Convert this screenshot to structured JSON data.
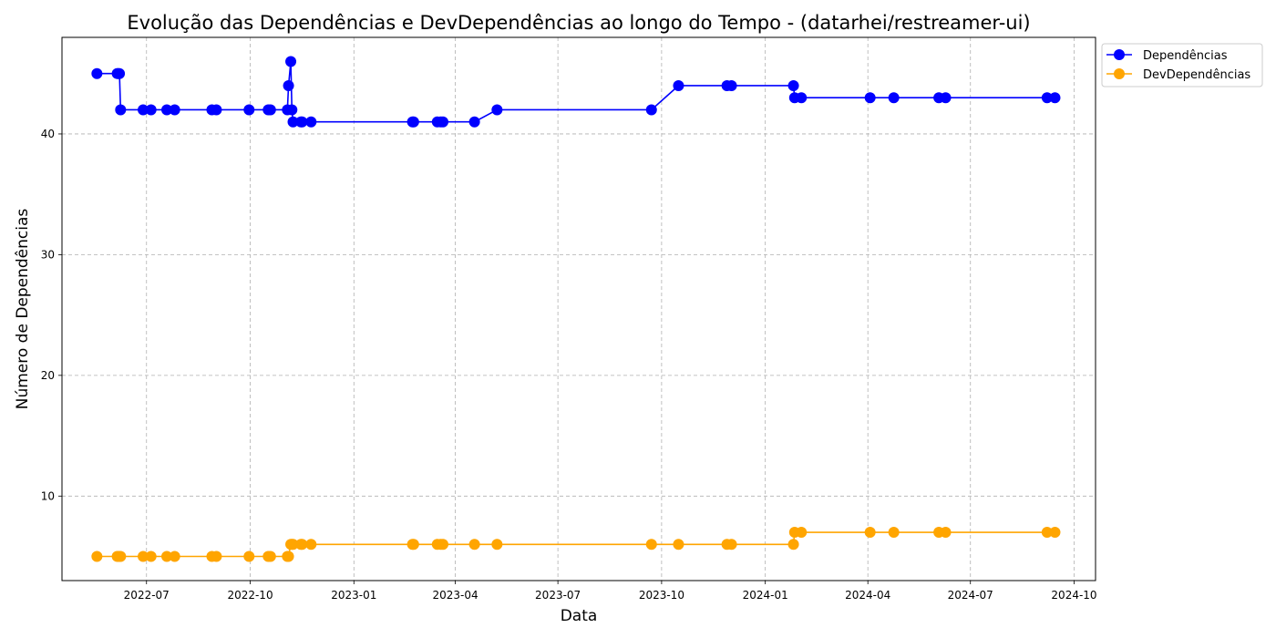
{
  "chart_data": {
    "type": "line",
    "title": "Evolução das Dependências e DevDependências ao longo do Tempo - (datarhei/restreamer-ui)",
    "xlabel": "Data",
    "ylabel": "Número de Dependências",
    "x_ticks": [
      "2022-07",
      "2022-10",
      "2023-01",
      "2023-04",
      "2023-07",
      "2023-10",
      "2024-01",
      "2024-04",
      "2024-07",
      "2024-10"
    ],
    "y_ticks": [
      10,
      20,
      30,
      40
    ],
    "xlim": [
      "2022-04-17",
      "2024-10-20"
    ],
    "ylim": [
      3,
      48
    ],
    "grid": true,
    "legend_position": "top-right",
    "x": [
      "2022-05-18",
      "2022-06-05",
      "2022-06-06",
      "2022-06-07",
      "2022-06-08",
      "2022-06-28",
      "2022-07-05",
      "2022-07-19",
      "2022-07-26",
      "2022-08-28",
      "2022-09-01",
      "2022-09-30",
      "2022-10-17",
      "2022-10-19",
      "2022-11-03",
      "2022-11-04",
      "2022-11-06",
      "2022-11-07",
      "2022-11-08",
      "2022-11-15",
      "2022-11-16",
      "2022-11-24",
      "2023-02-22",
      "2023-02-23",
      "2023-03-16",
      "2023-03-19",
      "2023-03-21",
      "2023-04-18",
      "2023-05-08",
      "2023-09-22",
      "2023-10-16",
      "2023-11-28",
      "2023-12-02",
      "2024-01-26",
      "2024-01-27",
      "2024-02-02",
      "2024-04-03",
      "2024-04-24",
      "2024-06-03",
      "2024-06-09",
      "2024-09-07",
      "2024-09-14"
    ],
    "series": [
      {
        "name": "Dependências",
        "color": "#0000ff",
        "values": [
          45,
          45,
          45,
          45,
          42,
          42,
          42,
          42,
          42,
          42,
          42,
          42,
          42,
          42,
          42,
          44,
          46,
          42,
          41,
          41,
          41,
          41,
          41,
          41,
          41,
          41,
          41,
          41,
          42,
          42,
          44,
          44,
          44,
          44,
          43,
          43,
          43,
          43,
          43,
          43,
          43,
          43
        ]
      },
      {
        "name": "DevDependências",
        "color": "#ffa500",
        "values": [
          5,
          5,
          5,
          5,
          5,
          5,
          5,
          5,
          5,
          5,
          5,
          5,
          5,
          5,
          5,
          5,
          6,
          6,
          6,
          6,
          6,
          6,
          6,
          6,
          6,
          6,
          6,
          6,
          6,
          6,
          6,
          6,
          6,
          6,
          7,
          7,
          7,
          7,
          7,
          7,
          7,
          7
        ]
      }
    ]
  }
}
